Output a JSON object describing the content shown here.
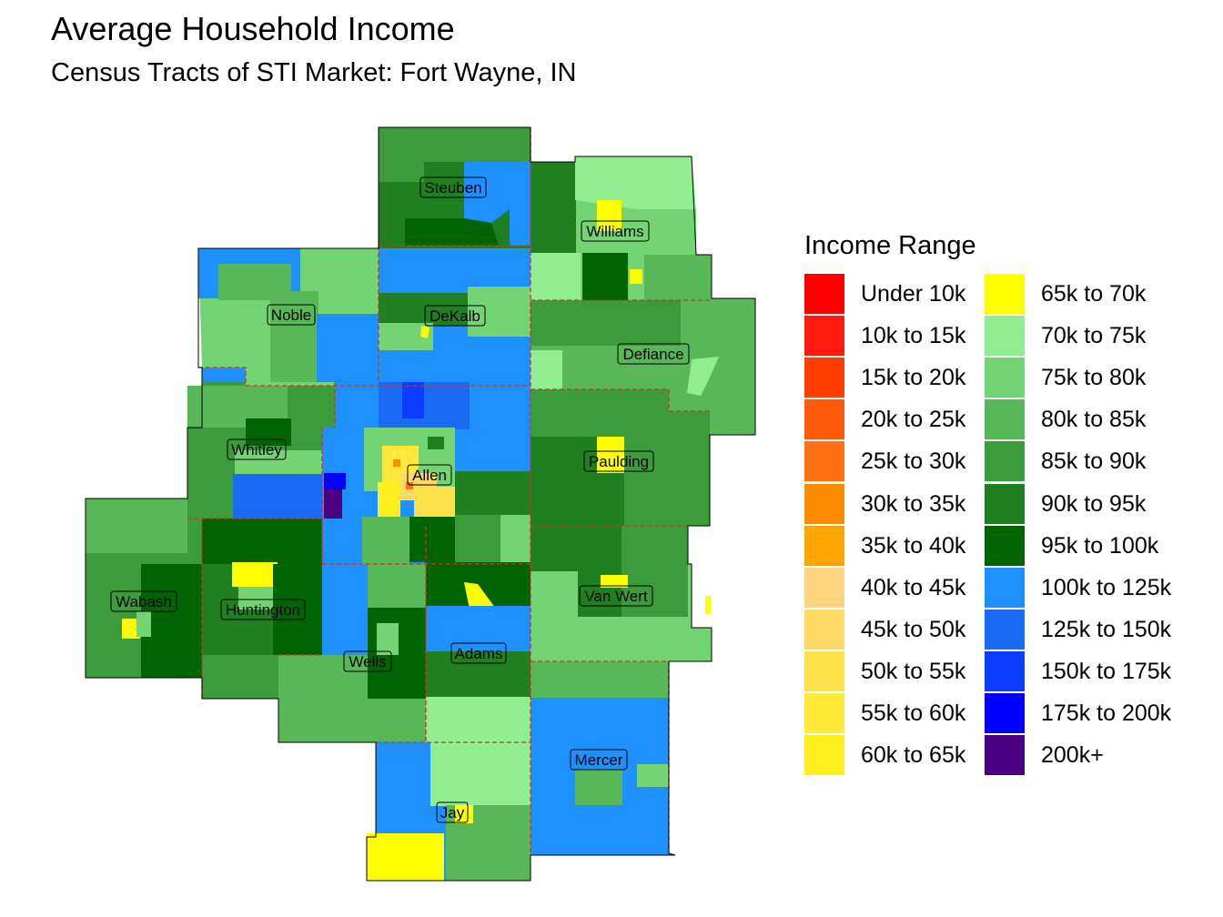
{
  "header": {
    "title": "Average Household Income",
    "subtitle": "Census Tracts of STI Market: Fort Wayne, IN"
  },
  "legend": {
    "title": "Income Range",
    "items": [
      {
        "label": "Under 10k",
        "color": "#ff0000"
      },
      {
        "label": "10k to 15k",
        "color": "#ff1a0d"
      },
      {
        "label": "15k to 20k",
        "color": "#ff3d00"
      },
      {
        "label": "20k to 25k",
        "color": "#ff5a0a"
      },
      {
        "label": "25k to 30k",
        "color": "#ff7113"
      },
      {
        "label": "30k to 35k",
        "color": "#ff8c00"
      },
      {
        "label": "35k to 40k",
        "color": "#ffa500"
      },
      {
        "label": "40k to 45k",
        "color": "#ffd47f"
      },
      {
        "label": "45k to 50k",
        "color": "#ffd966"
      },
      {
        "label": "50k to 55k",
        "color": "#ffe14a"
      },
      {
        "label": "55k to 60k",
        "color": "#ffe838"
      },
      {
        "label": "60k to 65k",
        "color": "#ffee1e"
      },
      {
        "label": "65k to 70k",
        "color": "#ffff00"
      },
      {
        "label": "70k to 75k",
        "color": "#90ee90"
      },
      {
        "label": "75k to 80k",
        "color": "#74d474"
      },
      {
        "label": "80k to 85k",
        "color": "#58b858"
      },
      {
        "label": "85k to 90k",
        "color": "#3c9c3c"
      },
      {
        "label": "90k to 95k",
        "color": "#208020"
      },
      {
        "label": "95k to 100k",
        "color": "#006400"
      },
      {
        "label": "100k to 125k",
        "color": "#1e90ff"
      },
      {
        "label": "125k to 150k",
        "color": "#1a6af5"
      },
      {
        "label": "150k to 175k",
        "color": "#0b3cff"
      },
      {
        "label": "175k to 200k",
        "color": "#0000ff"
      },
      {
        "label": "200k+",
        "color": "#4b0082"
      }
    ]
  },
  "counties": [
    {
      "name": "Steuben",
      "color": "#3c9c3c"
    },
    {
      "name": "Williams",
      "color": "#74d474"
    },
    {
      "name": "Noble",
      "color": "#74d474"
    },
    {
      "name": "DeKalb",
      "color": "#1e90ff"
    },
    {
      "name": "Defiance",
      "color": "#58b858"
    },
    {
      "name": "Whitley",
      "color": "#3c9c3c"
    },
    {
      "name": "Allen",
      "color": "#1e90ff"
    },
    {
      "name": "Paulding",
      "color": "#208020"
    },
    {
      "name": "Wabash",
      "color": "#3c9c3c"
    },
    {
      "name": "Huntington",
      "color": "#208020"
    },
    {
      "name": "Wells",
      "color": "#58b858"
    },
    {
      "name": "Adams",
      "color": "#1e90ff"
    },
    {
      "name": "Van Wert",
      "color": "#74d474"
    },
    {
      "name": "Mercer",
      "color": "#1e90ff"
    },
    {
      "name": "Jay",
      "color": "#1e90ff"
    }
  ]
}
